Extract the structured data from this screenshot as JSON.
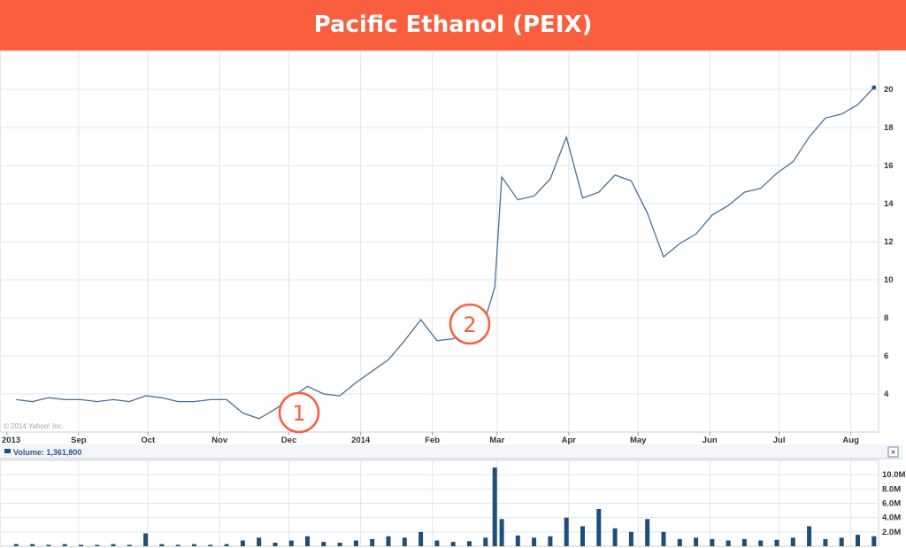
{
  "header": {
    "title": "Pacific Ethanol (PEIX)"
  },
  "copyright": "© 2014 Yahoo! Inc.",
  "volume_label": "Volume: 1,361,800",
  "close_label": "×",
  "annotations": [
    "1",
    "2"
  ],
  "colors": {
    "header": "#f95f3e",
    "line": "#4a6f96",
    "volume": "#1f4e7a",
    "grid": "#dfe5ec",
    "annotation": "#f95f3e"
  },
  "chart_data": [
    {
      "type": "line",
      "x": [
        "2013-08-05",
        "2013-08-12",
        "2013-08-19",
        "2013-08-26",
        "2013-09-02",
        "2013-09-09",
        "2013-09-16",
        "2013-09-23",
        "2013-09-30",
        "2013-10-07",
        "2013-10-14",
        "2013-10-21",
        "2013-10-28",
        "2013-11-04",
        "2013-11-11",
        "2013-11-18",
        "2013-11-25",
        "2013-12-02",
        "2013-12-09",
        "2013-12-16",
        "2013-12-23",
        "2013-12-30",
        "2014-01-06",
        "2014-01-13",
        "2014-01-20",
        "2014-01-27",
        "2014-02-03",
        "2014-02-10",
        "2014-02-17",
        "2014-02-24",
        "2014-02-28",
        "2014-03-03",
        "2014-03-10",
        "2014-03-17",
        "2014-03-24",
        "2014-03-31",
        "2014-04-07",
        "2014-04-14",
        "2014-04-21",
        "2014-04-28",
        "2014-05-05",
        "2014-05-12",
        "2014-05-19",
        "2014-05-26",
        "2014-06-02",
        "2014-06-09",
        "2014-06-16",
        "2014-06-23",
        "2014-06-30",
        "2014-07-07",
        "2014-07-14",
        "2014-07-21",
        "2014-07-28",
        "2014-08-04",
        "2014-08-11"
      ],
      "series": [
        {
          "values": [
            3.7,
            3.6,
            3.8,
            3.7,
            3.7,
            3.6,
            3.7,
            3.6,
            3.9,
            3.8,
            3.6,
            3.6,
            3.7,
            3.7,
            3.0,
            2.7,
            3.2,
            3.8,
            4.4,
            4.0,
            3.9,
            4.6,
            5.2,
            5.8,
            6.8,
            7.9,
            6.8,
            6.9,
            7.4,
            8.0,
            9.6,
            15.4,
            14.2,
            14.4,
            15.3,
            17.5,
            14.3,
            14.6,
            15.5,
            15.2,
            13.5,
            11.2,
            11.9,
            12.4,
            13.4,
            13.9,
            14.6,
            14.8,
            15.6,
            16.2,
            17.5,
            18.5,
            18.7,
            19.2,
            20.1
          ]
        }
      ],
      "x_ticks": [
        "2013",
        "Sep",
        "Oct",
        "Nov",
        "Dec",
        "2014",
        "Feb",
        "Mar",
        "Apr",
        "May",
        "Jun",
        "Jul",
        "Aug"
      ],
      "y_ticks": [
        4,
        6,
        8,
        10,
        12,
        14,
        16,
        18,
        20
      ],
      "ylim": [
        2,
        22
      ],
      "grid": true
    },
    {
      "type": "bar",
      "title": "Volume: 1,361,800",
      "x": [
        "2013-08-05",
        "2013-08-12",
        "2013-08-19",
        "2013-08-26",
        "2013-09-02",
        "2013-09-09",
        "2013-09-16",
        "2013-09-23",
        "2013-09-30",
        "2013-10-07",
        "2013-10-14",
        "2013-10-21",
        "2013-10-28",
        "2013-11-04",
        "2013-11-11",
        "2013-11-18",
        "2013-11-25",
        "2013-12-02",
        "2013-12-09",
        "2013-12-16",
        "2013-12-23",
        "2013-12-30",
        "2014-01-06",
        "2014-01-13",
        "2014-01-20",
        "2014-01-27",
        "2014-02-03",
        "2014-02-10",
        "2014-02-17",
        "2014-02-24",
        "2014-02-28",
        "2014-03-03",
        "2014-03-10",
        "2014-03-17",
        "2014-03-24",
        "2014-03-31",
        "2014-04-07",
        "2014-04-14",
        "2014-04-21",
        "2014-04-28",
        "2014-05-05",
        "2014-05-12",
        "2014-05-19",
        "2014-05-26",
        "2014-06-02",
        "2014-06-09",
        "2014-06-16",
        "2014-06-23",
        "2014-06-30",
        "2014-07-07",
        "2014-07-14",
        "2014-07-21",
        "2014-07-28",
        "2014-08-04",
        "2014-08-11"
      ],
      "series": [
        {
          "values": [
            0.3,
            0.3,
            0.2,
            0.3,
            0.2,
            0.2,
            0.3,
            0.2,
            1.8,
            0.3,
            0.2,
            0.3,
            0.2,
            0.3,
            0.8,
            1.2,
            0.5,
            0.8,
            1.4,
            0.6,
            0.5,
            0.8,
            1.0,
            1.4,
            1.2,
            2.0,
            0.8,
            0.6,
            0.7,
            1.2,
            11.0,
            3.8,
            1.5,
            1.2,
            1.4,
            4.0,
            2.8,
            5.2,
            2.5,
            2.0,
            3.8,
            2.0,
            1.0,
            1.2,
            1.0,
            0.8,
            1.0,
            0.8,
            0.9,
            1.2,
            2.8,
            1.0,
            1.2,
            1.6,
            1.4
          ]
        }
      ],
      "y_ticks": [
        "2.0M",
        "4.0M",
        "6.0M",
        "8.0M",
        "10.0M"
      ],
      "ylim": [
        0,
        12
      ],
      "grid": true
    }
  ]
}
